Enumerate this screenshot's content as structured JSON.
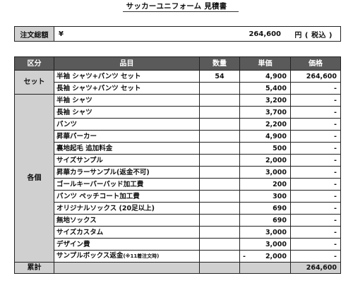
{
  "title": "サッカーユニフォーム 見積書",
  "total": {
    "label": "注文総額",
    "currency": "¥",
    "amount": "264,600",
    "unit": "円 ( 税込 )"
  },
  "headers": [
    "区分",
    "品目",
    "数量",
    "単価",
    "価格"
  ],
  "sections": [
    {
      "category": "セット",
      "rows": [
        {
          "item": "半袖 シャツ+パンツ セット",
          "qty": "54",
          "unit": "4,900",
          "price": "264,600"
        },
        {
          "item": "長袖 シャツ+パンツ セット",
          "qty": "",
          "unit": "5,400",
          "price": "-"
        }
      ]
    },
    {
      "category": "各個",
      "rows": [
        {
          "item": "半袖 シャツ",
          "qty": "",
          "unit": "3,200",
          "price": "-"
        },
        {
          "item": "長袖 シャツ",
          "qty": "",
          "unit": "3,700",
          "price": "-"
        },
        {
          "item": "パンツ",
          "qty": "",
          "unit": "2,200",
          "price": "-"
        },
        {
          "item": "昇華パーカー",
          "qty": "",
          "unit": "4,900",
          "price": "-"
        },
        {
          "item": "裏地起毛 追加料金",
          "qty": "",
          "unit": "500",
          "price": "-"
        },
        {
          "item": "サイズサンプル",
          "qty": "",
          "unit": "2,000",
          "price": "-"
        },
        {
          "item": "昇華カラーサンプル(返金不可)",
          "qty": "",
          "unit": "3,000",
          "price": "-"
        },
        {
          "item": "ゴールキーパーパッド加工費",
          "qty": "",
          "unit": "200",
          "price": "-"
        },
        {
          "item": "パンツ ペッチコート加工費",
          "qty": "",
          "unit": "300",
          "price": "-"
        },
        {
          "item": "オリジナルソックス (20足以上)",
          "qty": "",
          "unit": "690",
          "price": "-"
        },
        {
          "item": "無地ソックス",
          "qty": "",
          "unit": "690",
          "price": "-"
        },
        {
          "item": "サイズカスタム",
          "qty": "",
          "unit": "3,000",
          "price": "-"
        },
        {
          "item": "デザイン費",
          "qty": "",
          "unit": "3,000",
          "price": "-"
        },
        {
          "item": "サンプルボックス返金",
          "item_note": "(※11着注文時)",
          "qty": "",
          "unit_sign": "-",
          "unit": "2,000",
          "price": "-"
        }
      ]
    }
  ],
  "footer": {
    "label": "累計",
    "total": "264,600"
  }
}
